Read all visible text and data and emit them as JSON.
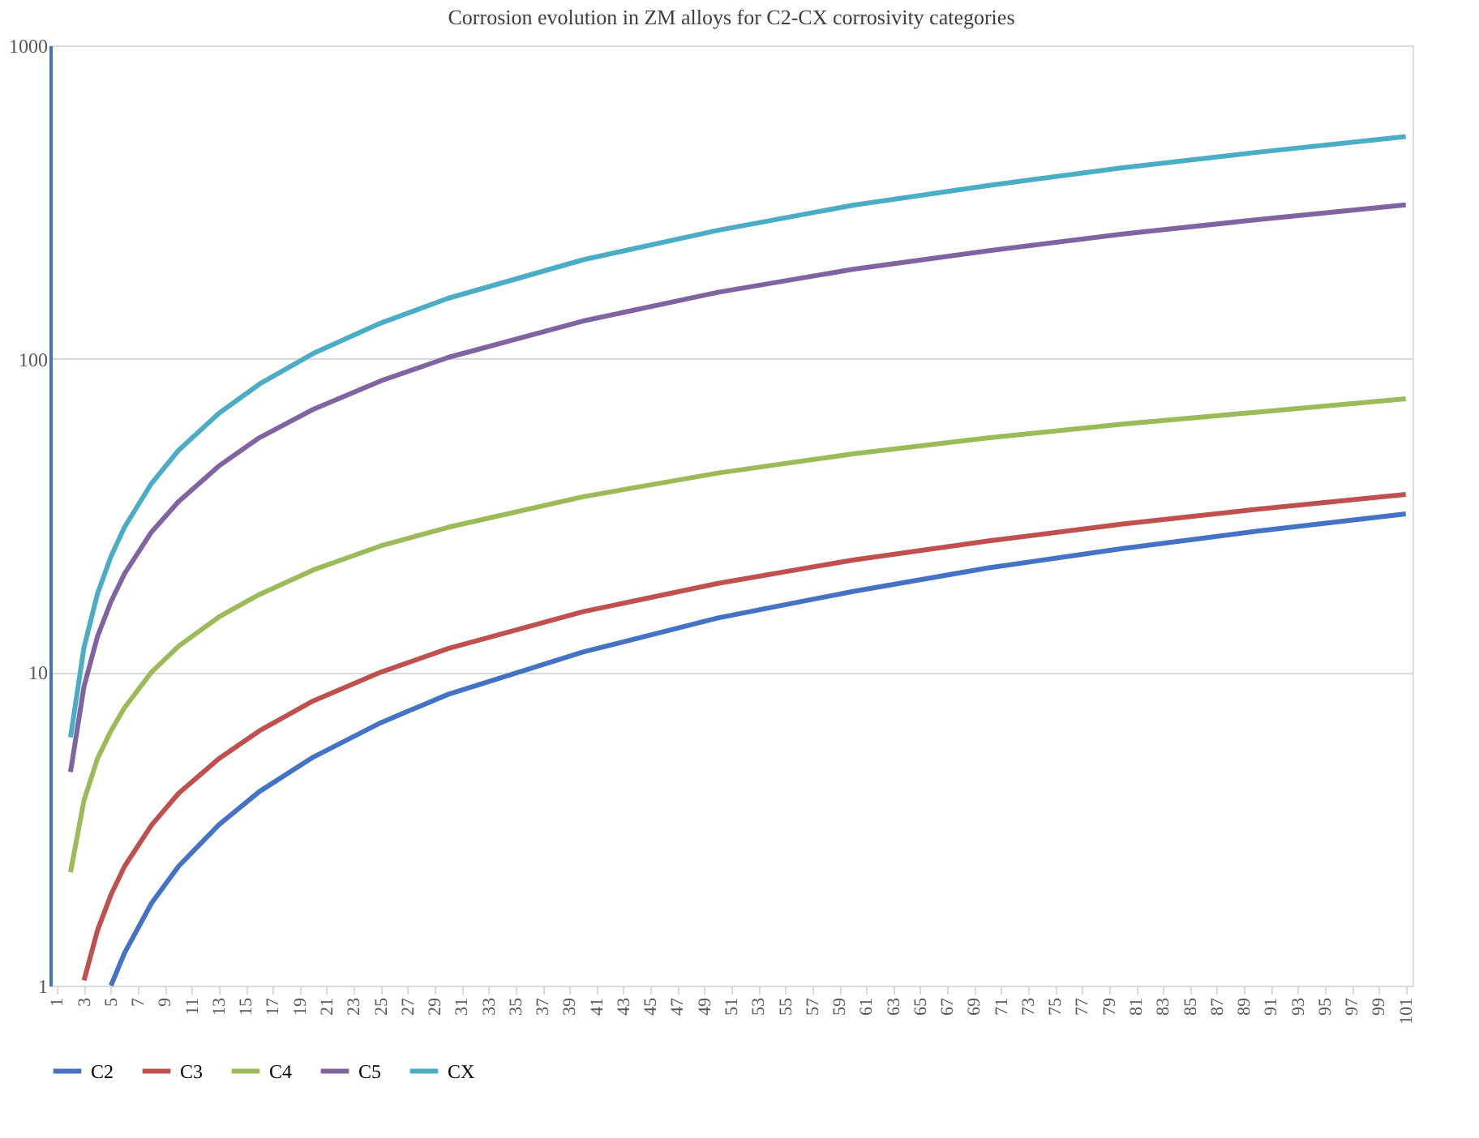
{
  "chart_data": {
    "type": "line",
    "title": "Corrosion evolution in ZM alloys for C2-CX corrosivity categories",
    "xlim": [
      0.5,
      101.5
    ],
    "xticks": [
      1,
      3,
      5,
      7,
      9,
      11,
      13,
      15,
      17,
      19,
      21,
      23,
      25,
      27,
      29,
      31,
      33,
      35,
      37,
      39,
      41,
      43,
      45,
      47,
      49,
      51,
      53,
      55,
      57,
      59,
      61,
      63,
      65,
      67,
      69,
      71,
      73,
      75,
      77,
      79,
      81,
      83,
      85,
      87,
      89,
      91,
      93,
      95,
      97,
      99,
      101
    ],
    "ylim": [
      1,
      1000
    ],
    "yticks": [
      1,
      10,
      100,
      1000
    ],
    "log": "y",
    "grid": "y",
    "legend": "bottom",
    "marker": "none",
    "line_style": "solid",
    "series": [
      {
        "name": "C2",
        "color": "#4472c4",
        "x": [
          5,
          6,
          8,
          10,
          13,
          16,
          20,
          25,
          30,
          40,
          50,
          60,
          70,
          80,
          90,
          101
        ],
        "values": [
          1.0,
          1.27,
          1.83,
          2.4,
          3.26,
          4.16,
          5.36,
          6.9,
          8.5,
          11.6,
          14.9,
          18.1,
          21.5,
          24.8,
          28.2,
          32.0
        ]
      },
      {
        "name": "C3",
        "color": "#c0504d",
        "x": [
          3,
          4,
          5,
          6,
          8,
          10,
          13,
          16,
          20,
          25,
          30,
          40,
          50,
          60,
          70,
          80,
          90,
          101
        ],
        "values": [
          1.04,
          1.5,
          1.95,
          2.4,
          3.25,
          4.1,
          5.3,
          6.5,
          8.1,
          10.0,
          11.9,
          15.6,
          19.2,
          22.8,
          26.2,
          29.7,
          33.1,
          36.9
        ]
      },
      {
        "name": "C4",
        "color": "#9bbb59",
        "x": [
          2,
          3,
          4,
          5,
          6,
          8,
          10,
          13,
          16,
          20,
          25,
          30,
          40,
          50,
          60,
          70,
          80,
          90,
          101
        ],
        "values": [
          2.3,
          3.9,
          5.3,
          6.5,
          7.7,
          10.0,
          12.1,
          15.0,
          17.7,
          21.2,
          25.3,
          29.0,
          36.3,
          43.2,
          49.7,
          55.9,
          61.9,
          67.6,
          74.5
        ]
      },
      {
        "name": "C5",
        "color": "#8064a2",
        "x": [
          2,
          3,
          4,
          5,
          6,
          8,
          10,
          13,
          16,
          20,
          25,
          30,
          40,
          50,
          60,
          70,
          80,
          90,
          101
        ],
        "values": [
          4.8,
          9.0,
          13.0,
          16.8,
          20.6,
          28,
          35,
          45.5,
          56,
          69,
          85,
          101,
          132,
          163,
          193,
          221,
          250,
          278,
          310
        ]
      },
      {
        "name": "CX",
        "color": "#4bacc6",
        "x": [
          2,
          3,
          4,
          5,
          6,
          8,
          10,
          13,
          16,
          20,
          25,
          30,
          40,
          50,
          60,
          70,
          80,
          90,
          101
        ],
        "values": [
          6.2,
          12.0,
          17.8,
          23.4,
          29.0,
          40,
          51,
          67,
          83,
          104,
          130,
          156,
          207,
          257,
          309,
          357,
          407,
          456,
          512
        ]
      }
    ]
  }
}
